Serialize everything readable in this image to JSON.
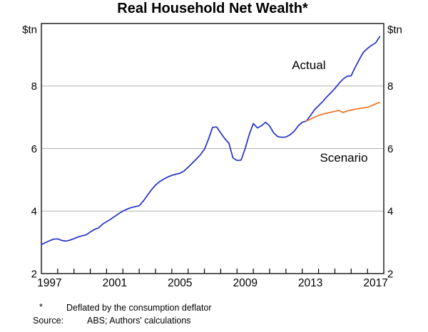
{
  "title": "Real Household Net Wealth*",
  "footnotes": {
    "marker": "*",
    "footnote_text": "Deflated by the consumption deflator",
    "source_label": "Source:",
    "source_text": "ABS; Authors' calculations"
  },
  "colors": {
    "actual": "#2130c8",
    "scenario": "#ef7120",
    "grid": "#b0b0b0",
    "axis": "#000000"
  },
  "chart_data": {
    "type": "line",
    "title": "Real Household Net Wealth*",
    "xlabel": "",
    "ylabel": "$tn",
    "xlim": [
      1997,
      2018
    ],
    "ylim": [
      2,
      10
    ],
    "grid": true,
    "gridline_values": [
      4,
      6,
      8
    ],
    "y_axis": {
      "unit_label_left": "$tn",
      "unit_label_right": "$tn",
      "tick_values": [
        8,
        6,
        4,
        2
      ],
      "tick_labels": [
        "8",
        "6",
        "4",
        "2"
      ]
    },
    "x_axis": {
      "tick_labels": [
        "1997",
        "2001",
        "2005",
        "2009",
        "2013",
        "2017"
      ],
      "label_positions": [
        1997.5,
        2001.5,
        2005.5,
        2009.5,
        2013.5,
        2017.5
      ],
      "minor_tick_years": [
        1998,
        1999,
        2000,
        2001,
        2002,
        2003,
        2004,
        2005,
        2006,
        2007,
        2008,
        2009,
        2010,
        2011,
        2012,
        2013,
        2014,
        2015,
        2016,
        2017
      ]
    },
    "series": [
      {
        "name": "Actual",
        "color": "#2130c8",
        "x_start": 1997.0,
        "x_step": 0.25,
        "values": [
          2.93,
          2.99,
          3.05,
          3.1,
          3.11,
          3.06,
          3.04,
          3.07,
          3.12,
          3.17,
          3.21,
          3.24,
          3.33,
          3.41,
          3.46,
          3.58,
          3.66,
          3.74,
          3.83,
          3.92,
          4.0,
          4.06,
          4.11,
          4.14,
          4.17,
          4.32,
          4.5,
          4.68,
          4.83,
          4.94,
          5.02,
          5.09,
          5.14,
          5.18,
          5.21,
          5.28,
          5.4,
          5.53,
          5.66,
          5.8,
          5.98,
          6.3,
          6.68,
          6.69,
          6.5,
          6.32,
          6.17,
          5.7,
          5.62,
          5.63,
          6.0,
          6.45,
          6.8,
          6.66,
          6.73,
          6.84,
          6.72,
          6.5,
          6.38,
          6.36,
          6.37,
          6.44,
          6.55,
          6.72,
          6.84,
          6.88,
          7.05,
          7.24,
          7.37,
          7.5,
          7.65,
          7.78,
          7.92,
          8.08,
          8.22,
          8.31,
          8.33,
          8.6,
          8.85,
          9.08,
          9.2,
          9.3,
          9.38,
          9.58
        ]
      },
      {
        "name": "Scenario",
        "color": "#ef7120",
        "x_start": 2013.25,
        "x_step": 0.25,
        "values": [
          6.88,
          6.94,
          7.0,
          7.06,
          7.1,
          7.13,
          7.16,
          7.19,
          7.22,
          7.15,
          7.2,
          7.23,
          7.26,
          7.28,
          7.3,
          7.32,
          7.37,
          7.43,
          7.48
        ]
      }
    ],
    "annotations": [
      {
        "text": "Actual",
        "x": 2013.4,
        "y": 8.68,
        "color": "#2130c8"
      },
      {
        "text": "Scenario",
        "x": 2015.55,
        "y": 5.71,
        "color": "#ef7120"
      }
    ],
    "legend_position": "inline-labels"
  }
}
